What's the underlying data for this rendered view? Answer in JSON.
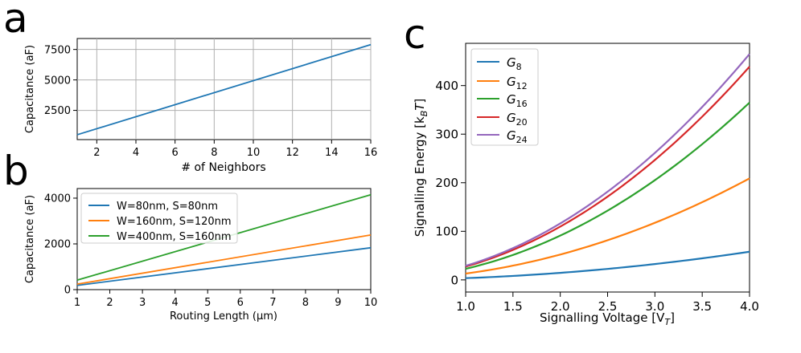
{
  "colors": {
    "blue": "#1f77b4",
    "orange": "#ff7f0e",
    "green": "#2ca02c",
    "red": "#d62728",
    "purple": "#9467bd",
    "grid": "#b0b0b0",
    "axis": "#000000"
  },
  "chart_data": [
    {
      "panel_label": "a",
      "type": "line",
      "xlabel": "# of Neighbors",
      "ylabel": "Capacitance (aF)",
      "xlim": [
        1,
        16
      ],
      "ylim": [
        100,
        8400
      ],
      "xticks": [
        2,
        4,
        6,
        8,
        10,
        12,
        14,
        16
      ],
      "yticks": [
        2500,
        5000,
        7500
      ],
      "grid": true,
      "series": [
        {
          "name": "capacitance",
          "color": "#1f77b4",
          "x": [
            1,
            16
          ],
          "y": [
            500,
            7900
          ]
        }
      ]
    },
    {
      "panel_label": "b",
      "type": "line",
      "xlabel": "Routing Length (μm)",
      "ylabel": "Capacitance (aF)",
      "xlim": [
        1,
        10
      ],
      "ylim": [
        0,
        4420
      ],
      "xticks": [
        1,
        2,
        3,
        4,
        5,
        6,
        7,
        8,
        9,
        10
      ],
      "yticks": [
        0,
        2000,
        4000
      ],
      "grid": false,
      "legend": "top-left",
      "series": [
        {
          "name": "W=80nm, S=80nm",
          "color": "#1f77b4",
          "x": [
            1,
            10
          ],
          "y": [
            185,
            1830
          ]
        },
        {
          "name": "W=160nm, S=120nm",
          "color": "#ff7f0e",
          "x": [
            1,
            10
          ],
          "y": [
            240,
            2390
          ]
        },
        {
          "name": "W=400nm, S=160nm",
          "color": "#2ca02c",
          "x": [
            1,
            10
          ],
          "y": [
            415,
            4150
          ]
        }
      ]
    },
    {
      "panel_label": "c",
      "type": "line",
      "xlabel": "Signalling Voltage [V",
      "xlabel_sub": "T",
      "xlabel_end": "]",
      "ylabel": "Signalling Energy [k",
      "ylabel_sub": "B",
      "ylabel_mid": "T",
      "ylabel_end": "]",
      "xlim": [
        1.0,
        4.0
      ],
      "ylim": [
        -25,
        487
      ],
      "xticks": [
        "1.0",
        "1.5",
        "2.0",
        "2.5",
        "3.0",
        "3.5",
        "4.0"
      ],
      "yticks": [
        0,
        100,
        200,
        300,
        400
      ],
      "grid": false,
      "legend": "top-left",
      "series": [
        {
          "name": "G",
          "sub": "8",
          "color": "#1f77b4",
          "energy_at_1V": 3.6,
          "energy_at_4V": 58
        },
        {
          "name": "G",
          "sub": "12",
          "color": "#ff7f0e",
          "energy_at_1V": 13,
          "energy_at_4V": 209
        },
        {
          "name": "G",
          "sub": "16",
          "color": "#2ca02c",
          "energy_at_1V": 22.8,
          "energy_at_4V": 365
        },
        {
          "name": "G",
          "sub": "20",
          "color": "#d62728",
          "energy_at_1V": 27.4,
          "energy_at_4V": 439
        },
        {
          "name": "G",
          "sub": "24",
          "color": "#9467bd",
          "energy_at_1V": 29,
          "energy_at_4V": 465
        }
      ]
    }
  ]
}
